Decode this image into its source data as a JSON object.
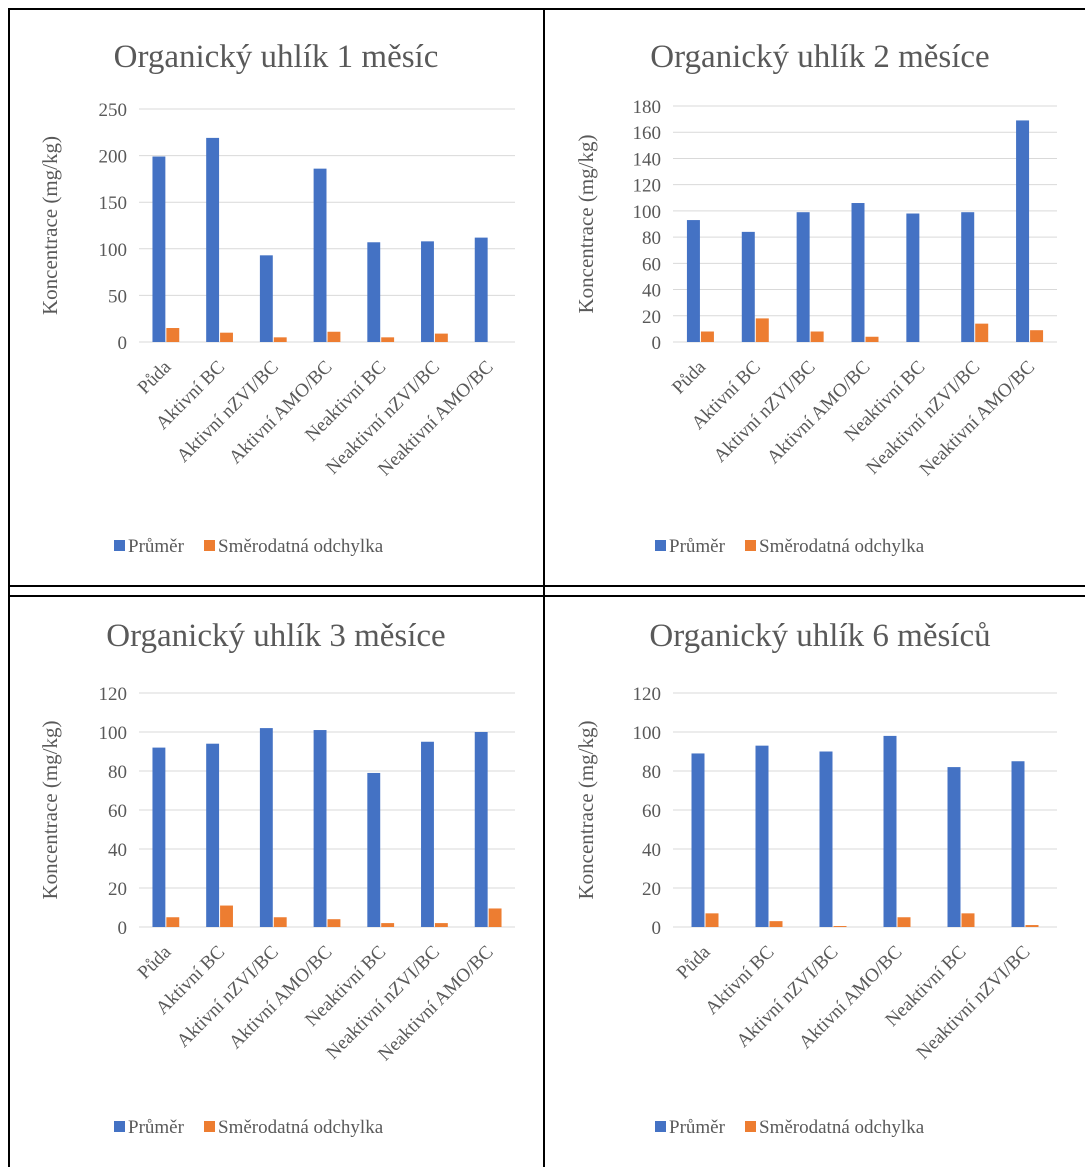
{
  "legend": {
    "mean_label": "Průměr",
    "sd_label": "Směrodatná odchylka"
  },
  "colors": {
    "mean": "#4472C4",
    "sd": "#ED7D31",
    "grid": "#d9d9d9",
    "text": "#595959"
  },
  "chart_data": [
    {
      "type": "bar",
      "title": "Organický uhlík 1 měsíc",
      "ylabel": "Koncentrace (mg/kg)",
      "xlabel": "",
      "ylim": [
        0,
        250
      ],
      "yticks": [
        0,
        50,
        100,
        150,
        200,
        250
      ],
      "categories": [
        "Půda",
        "Aktivní BC",
        "Aktivní nZVI/BC",
        "Aktivní AMO/BC",
        "Neaktivní BC",
        "Neaktivní nZVI/BC",
        "Neaktivní AMO/BC"
      ],
      "series": [
        {
          "name": "Průměr",
          "values": [
            199,
            219,
            93,
            186,
            107,
            108,
            112
          ]
        },
        {
          "name": "Směrodatná odchylka",
          "values": [
            15,
            10,
            5,
            11,
            5,
            9,
            0
          ]
        }
      ],
      "legend": "bottom",
      "grid": true
    },
    {
      "type": "bar",
      "title": "Organický uhlík 2 měsíce",
      "ylabel": "Koncentrace (mg/kg)",
      "xlabel": "",
      "ylim": [
        0,
        180
      ],
      "yticks": [
        0,
        20,
        40,
        60,
        80,
        100,
        120,
        140,
        160,
        180
      ],
      "categories": [
        "Půda",
        "Aktivní BC",
        "Aktivní nZVI/BC",
        "Aktivní AMO/BC",
        "Neaktivní BC",
        "Neaktivní nZVI/BC",
        "Neaktivní AMO/BC"
      ],
      "series": [
        {
          "name": "Průměr",
          "values": [
            93,
            84,
            99,
            106,
            98,
            99,
            169
          ]
        },
        {
          "name": "Směrodatná odchylka",
          "values": [
            8,
            18,
            8,
            4,
            0,
            14,
            9
          ]
        }
      ],
      "legend": "bottom",
      "grid": true
    },
    {
      "type": "bar",
      "title": "Organický uhlík 3 měsíce",
      "ylabel": "Koncentrace (mg/kg)",
      "xlabel": "",
      "ylim": [
        0,
        120
      ],
      "yticks": [
        0,
        20,
        40,
        60,
        80,
        100,
        120
      ],
      "categories": [
        "Půda",
        "Aktivní BC",
        "Aktivní nZVI/BC",
        "Aktivní AMO/BC",
        "Neaktivní BC",
        "Neaktivní nZVI/BC",
        "Neaktivní AMO/BC"
      ],
      "series": [
        {
          "name": "Průměr",
          "values": [
            92,
            94,
            102,
            101,
            79,
            95,
            100
          ]
        },
        {
          "name": "Směrodatná odchylka",
          "values": [
            5,
            11,
            5,
            4,
            2,
            2,
            9.5
          ]
        }
      ],
      "legend": "bottom",
      "grid": true
    },
    {
      "type": "bar",
      "title": "Organický uhlík 6 měsíců",
      "ylabel": "Koncentrace (mg/kg)",
      "xlabel": "",
      "ylim": [
        0,
        120
      ],
      "yticks": [
        0,
        20,
        40,
        60,
        80,
        100,
        120
      ],
      "categories": [
        "Půda",
        "Aktivní BC",
        "Aktivní nZVI/BC",
        "Aktivní AMO/BC",
        "Neaktivní BC",
        "Neaktivní nZVI/BC"
      ],
      "series": [
        {
          "name": "Průměr",
          "values": [
            89,
            93,
            90,
            98,
            82,
            85
          ]
        },
        {
          "name": "Směrodatná odchylka",
          "values": [
            7,
            3,
            0.5,
            5,
            7,
            1
          ]
        }
      ],
      "legend": "bottom",
      "grid": true
    }
  ]
}
